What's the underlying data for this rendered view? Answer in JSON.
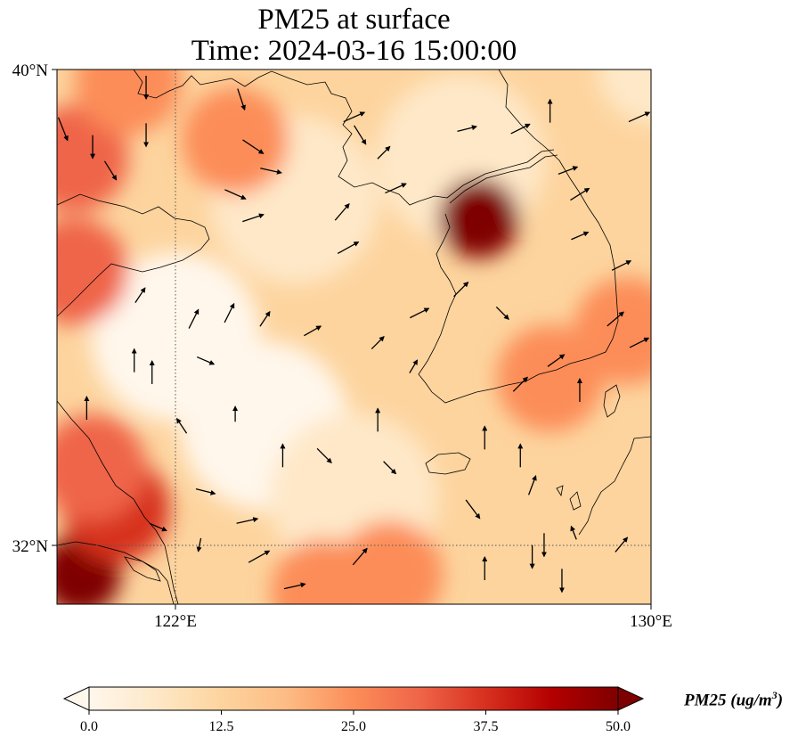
{
  "title": {
    "line1": "PM25 at surface",
    "line2": "Time: 2024-03-16 15:00:00"
  },
  "axes": {
    "lat_labels": [
      "40°N",
      "32°N"
    ],
    "lon_labels": [
      "122°E",
      "130°E"
    ],
    "extent": {
      "lon_min": 120,
      "lon_max": 130,
      "lat_min": 31,
      "lat_max": 40
    },
    "gridlines": {
      "lons": [
        122,
        130
      ],
      "lats": [
        32,
        40
      ],
      "style": "dotted"
    }
  },
  "colorbar": {
    "ticks": [
      "0.0",
      "12.5",
      "25.0",
      "37.5",
      "50.0"
    ],
    "min": 0,
    "max": 50,
    "extend": "both",
    "label_main": "PM25 (ug/m",
    "label_sup": "3",
    "label_end": ")",
    "colormap": "OrRd",
    "colors": [
      "#fff7ec",
      "#fee8c8",
      "#fdd49e",
      "#fdbb84",
      "#fc8d59",
      "#ef6548",
      "#d7301f",
      "#b30000",
      "#7f0000"
    ]
  },
  "pm25_field": {
    "units": "ug/m3",
    "hotspots": [
      {
        "lon": 130.0,
        "lat": 40.0,
        "value": 8
      },
      {
        "lon": 120.3,
        "lat": 38.5,
        "value": 30
      },
      {
        "lon": 121.2,
        "lat": 39.8,
        "value": 28
      },
      {
        "lon": 123.0,
        "lat": 38.8,
        "value": 26
      },
      {
        "lon": 120.3,
        "lat": 36.6,
        "value": 34
      },
      {
        "lon": 127.1,
        "lat": 37.5,
        "value": 47
      },
      {
        "lon": 128.3,
        "lat": 34.8,
        "value": 26
      },
      {
        "lon": 129.6,
        "lat": 35.6,
        "value": 24
      },
      {
        "lon": 120.4,
        "lat": 31.5,
        "value": 52
      },
      {
        "lon": 121.0,
        "lat": 32.6,
        "value": 38
      },
      {
        "lon": 120.6,
        "lat": 33.3,
        "value": 30
      },
      {
        "lon": 125.6,
        "lat": 31.5,
        "value": 26
      },
      {
        "lon": 124.5,
        "lat": 31.2,
        "value": 24
      }
    ],
    "clean_zones": [
      {
        "lon": 122.0,
        "lat": 35.5,
        "value": 3
      },
      {
        "lon": 123.5,
        "lat": 34.0,
        "value": 2
      },
      {
        "lon": 124.0,
        "lat": 37.8,
        "value": 4
      },
      {
        "lon": 125.0,
        "lat": 32.8,
        "value": 4
      },
      {
        "lon": 126.8,
        "lat": 38.5,
        "value": 7
      }
    ]
  },
  "wind_vectors_note": "",
  "wind_vectors": [
    [
      120.1,
      39.0,
      0.4,
      -1.0
    ],
    [
      120.6,
      38.7,
      0.0,
      -1.0
    ],
    [
      120.9,
      38.3,
      0.5,
      -0.8
    ],
    [
      121.5,
      39.7,
      0.0,
      -1.0
    ],
    [
      121.5,
      38.9,
      0.0,
      -1.0
    ],
    [
      123.1,
      39.5,
      0.3,
      -0.9
    ],
    [
      123.3,
      38.7,
      0.9,
      -0.6
    ],
    [
      123.6,
      38.3,
      0.9,
      -0.2
    ],
    [
      123.0,
      37.9,
      0.9,
      -0.4
    ],
    [
      123.3,
      37.5,
      0.9,
      0.3
    ],
    [
      125.0,
      39.2,
      0.9,
      0.4
    ],
    [
      125.1,
      38.9,
      0.5,
      -0.8
    ],
    [
      125.5,
      38.6,
      0.5,
      0.5
    ],
    [
      125.7,
      38.0,
      0.9,
      0.4
    ],
    [
      124.9,
      37.0,
      0.9,
      0.5
    ],
    [
      126.1,
      35.9,
      0.8,
      0.4
    ],
    [
      126.8,
      36.3,
      0.6,
      0.6
    ],
    [
      128.8,
      37.9,
      0.8,
      0.5
    ],
    [
      128.8,
      37.2,
      0.7,
      0.3
    ],
    [
      129.5,
      36.7,
      0.8,
      0.4
    ],
    [
      129.4,
      35.8,
      0.7,
      0.6
    ],
    [
      129.8,
      35.4,
      0.8,
      0.4
    ],
    [
      129.8,
      39.2,
      0.9,
      0.4
    ],
    [
      127.8,
      39.0,
      0.8,
      0.4
    ],
    [
      126.9,
      39.0,
      0.8,
      0.2
    ],
    [
      121.4,
      36.2,
      0.4,
      0.6
    ],
    [
      122.3,
      35.8,
      0.4,
      0.8
    ],
    [
      122.9,
      35.9,
      0.4,
      0.8
    ],
    [
      123.5,
      35.8,
      0.4,
      0.6
    ],
    [
      124.3,
      35.6,
      0.7,
      0.4
    ],
    [
      125.4,
      35.4,
      0.5,
      0.5
    ],
    [
      121.3,
      35.1,
      0.0,
      1.0
    ],
    [
      121.6,
      34.9,
      0.0,
      1.0
    ],
    [
      123.0,
      34.2,
      0.0,
      0.6
    ],
    [
      125.4,
      34.1,
      0.0,
      1.0
    ],
    [
      125.6,
      33.3,
      0.5,
      -0.5
    ],
    [
      124.5,
      33.5,
      0.6,
      -0.6
    ],
    [
      122.5,
      32.9,
      0.8,
      -0.2
    ],
    [
      123.2,
      32.4,
      0.9,
      0.2
    ],
    [
      125.1,
      31.8,
      0.6,
      0.7
    ],
    [
      124.0,
      31.3,
      0.9,
      0.2
    ],
    [
      123.4,
      31.8,
      0.9,
      0.5
    ],
    [
      123.8,
      33.5,
      0.0,
      1.0
    ],
    [
      127.2,
      33.8,
      0.0,
      1.0
    ],
    [
      127.8,
      33.5,
      0.0,
      1.0
    ],
    [
      128.0,
      33.0,
      0.3,
      0.8
    ],
    [
      128.0,
      31.8,
      0.0,
      -1.0
    ],
    [
      128.2,
      32.0,
      0.0,
      -1.0
    ],
    [
      128.5,
      31.4,
      0.0,
      -1.0
    ],
    [
      127.2,
      31.6,
      0.0,
      1.0
    ],
    [
      129.5,
      32.0,
      0.5,
      0.6
    ],
    [
      122.1,
      34.0,
      -0.4,
      0.6
    ],
    [
      121.7,
      32.3,
      0.7,
      -0.3
    ],
    [
      122.4,
      32.0,
      -0.1,
      -0.5
    ],
    [
      120.5,
      34.3,
      0.0,
      1.0
    ],
    [
      122.5,
      35.1,
      0.7,
      -0.3
    ],
    [
      127.0,
      32.6,
      0.6,
      -0.8
    ],
    [
      128.7,
      32.2,
      -0.2,
      0.5
    ],
    [
      126.0,
      35.0,
      0.3,
      0.5
    ],
    [
      127.8,
      34.7,
      0.6,
      0.6
    ],
    [
      128.4,
      35.1,
      0.7,
      0.5
    ],
    [
      128.8,
      34.6,
      0.0,
      1.0
    ],
    [
      127.5,
      35.9,
      0.5,
      -0.5
    ],
    [
      128.3,
      39.3,
      0.0,
      1.0
    ],
    [
      128.6,
      38.3,
      0.8,
      0.3
    ],
    [
      124.8,
      37.6,
      0.6,
      0.7
    ]
  ]
}
